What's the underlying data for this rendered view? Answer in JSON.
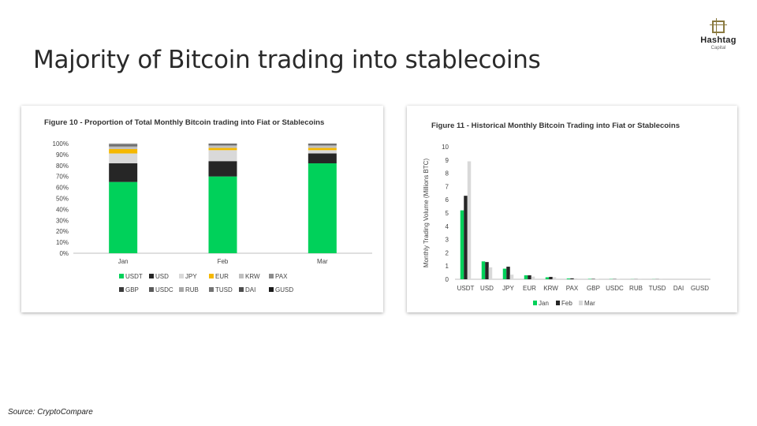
{
  "slide": {
    "title": "Majority of Bitcoin trading into stablecoins",
    "source": "Source: CryptoCompare"
  },
  "logo": {
    "name": "Hashtag",
    "sub": "Capital",
    "icon": "hashtag-frame-icon"
  },
  "colors": {
    "USDT": "#00d15a",
    "USD": "#262626",
    "JPY": "#d9d9d9",
    "EUR": "#f5b800",
    "KRW": "#bfbfbf",
    "PAX": "#8c8c8c",
    "GBP": "#3a3a3a",
    "USDC": "#595959",
    "RUB": "#a6a6a6",
    "TUSD": "#737373",
    "DAI": "#4d4d4d",
    "GUSD": "#1a1a1a",
    "Jan": "#00d15a",
    "Feb": "#262626",
    "Mar": "#d9d9d9"
  },
  "chart_data": [
    {
      "type": "bar",
      "stacked": true,
      "title": "Figure 10 - Proportion of Total Monthly Bitcoin trading into Fiat or Stablecoins",
      "categories": [
        "Jan",
        "Feb",
        "Mar"
      ],
      "yticks": [
        "100%",
        "90%",
        "80%",
        "70%",
        "60%",
        "50%",
        "40%",
        "30%",
        "20%",
        "10%",
        "0%"
      ],
      "ylim": [
        0,
        100
      ],
      "legend_position": "bottom",
      "legend_rows": [
        [
          "USDT",
          "USD",
          "JPY",
          "EUR",
          "KRW",
          "PAX"
        ],
        [
          "GBP",
          "USDC",
          "RUB",
          "TUSD",
          "DAI",
          "GUSD"
        ]
      ],
      "series": [
        {
          "name": "USDT",
          "values": [
            65,
            70,
            82
          ]
        },
        {
          "name": "USD",
          "values": [
            17,
            14,
            9
          ]
        },
        {
          "name": "JPY",
          "values": [
            9,
            10,
            3
          ]
        },
        {
          "name": "EUR",
          "values": [
            4,
            2,
            2
          ]
        },
        {
          "name": "KRW",
          "values": [
            2,
            2,
            2
          ]
        },
        {
          "name": "PAX",
          "values": [
            1,
            1,
            1
          ]
        },
        {
          "name": "GBP",
          "values": [
            0.5,
            0.5,
            0.5
          ]
        },
        {
          "name": "USDC",
          "values": [
            0.5,
            0.5,
            0.5
          ]
        },
        {
          "name": "RUB",
          "values": [
            0.5,
            0,
            0
          ]
        },
        {
          "name": "TUSD",
          "values": [
            0.5,
            0,
            0
          ]
        },
        {
          "name": "DAI",
          "values": [
            0,
            0,
            0
          ]
        },
        {
          "name": "GUSD",
          "values": [
            0,
            0,
            0
          ]
        }
      ]
    },
    {
      "type": "bar",
      "title": "Figure 11 - Historical Monthly Bitcoin Trading into Fiat or Stablecoins",
      "ylabel": "Monthly Trading Volume (Millions BTC)",
      "categories": [
        "USDT",
        "USD",
        "JPY",
        "EUR",
        "KRW",
        "PAX",
        "GBP",
        "USDC",
        "RUB",
        "TUSD",
        "DAI",
        "GUSD"
      ],
      "yticks": [
        "10",
        "9",
        "8",
        "7",
        "6",
        "5",
        "4",
        "3",
        "2",
        "1",
        "0"
      ],
      "ylim": [
        0,
        10
      ],
      "legend_position": "bottom",
      "series": [
        {
          "name": "Jan",
          "values": [
            5.2,
            1.35,
            0.8,
            0.3,
            0.15,
            0.06,
            0.03,
            0.02,
            0.01,
            0.01,
            0,
            0
          ]
        },
        {
          "name": "Feb",
          "values": [
            6.3,
            1.3,
            0.95,
            0.3,
            0.18,
            0.07,
            0.03,
            0.02,
            0.01,
            0.01,
            0,
            0
          ]
        },
        {
          "name": "Mar",
          "values": [
            8.9,
            0.9,
            0.35,
            0.2,
            0.15,
            0.07,
            0.03,
            0.02,
            0.01,
            0.01,
            0,
            0
          ]
        }
      ]
    }
  ]
}
